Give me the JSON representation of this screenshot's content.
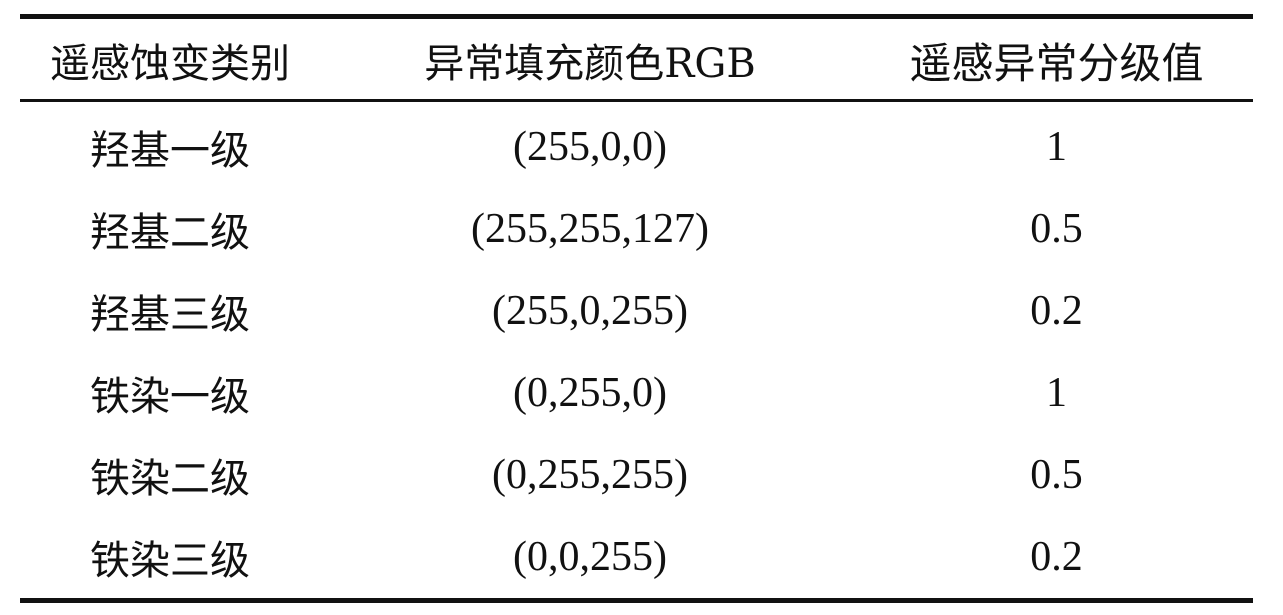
{
  "headers": [
    "遥感蚀变类别",
    "异常填充颜色RGB",
    "遥感异常分级值"
  ],
  "rows": [
    [
      "羟基一级",
      "(255,0,0)",
      "1"
    ],
    [
      "羟基二级",
      "(255,255,127)",
      "0.5"
    ],
    [
      "羟基三级",
      "(255,0,255)",
      "0.2"
    ],
    [
      "铁染一级",
      "(0,255,0)",
      "1"
    ],
    [
      "铁染二级",
      "(0,255,255)",
      "0.5"
    ],
    [
      "铁染三级",
      "(0,0,255)",
      "0.2"
    ]
  ]
}
